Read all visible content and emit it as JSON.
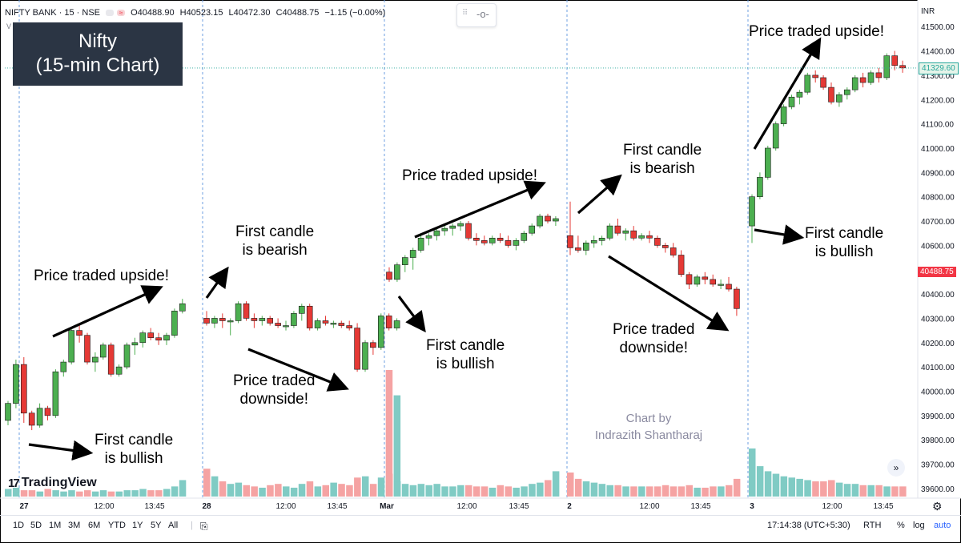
{
  "header": {
    "symbol": "NIFTY BANK · 15 · NSE",
    "ohlc": {
      "open": "O40488.90",
      "high": "H40523.15",
      "low": "L40472.30",
      "close": "C40488.75",
      "change": "−1.15 (−0.00%)"
    },
    "currency": "INR",
    "sub_label": "V"
  },
  "title_box": {
    "line1": "Nifty",
    "line2": "(15-min Chart)"
  },
  "annotations": [
    {
      "text": "Price traded upside!",
      "lines": [
        "Price traded upside!"
      ]
    },
    {
      "text": "First candle is bullish",
      "lines": [
        "First candle",
        "is bullish"
      ]
    },
    {
      "text": "First candle is bearish",
      "lines": [
        "First candle",
        "is bearish"
      ]
    },
    {
      "text": "Price traded downside!",
      "lines": [
        "Price traded",
        "downside!"
      ]
    },
    {
      "text": "Price traded upside!",
      "lines": [
        "Price traded upside!"
      ]
    },
    {
      "text": "First candle is bullish",
      "lines": [
        "First candle",
        "is bullish"
      ]
    },
    {
      "text": "First candle is bearish",
      "lines": [
        "First candle",
        "is bearish"
      ]
    },
    {
      "text": "Price traded downside!",
      "lines": [
        "Price traded",
        "downside!"
      ]
    },
    {
      "text": "Price traded upside!",
      "lines": [
        "Price traded upside!"
      ]
    },
    {
      "text": "First candle is bullish",
      "lines": [
        "First candle",
        "is bullish"
      ]
    }
  ],
  "watermark": {
    "line1": "Chart by",
    "line2": "Indrazith Shantharaj"
  },
  "logo": {
    "text": "TradingView",
    "mark": "17"
  },
  "toolbar": {
    "timeframes": [
      "1D",
      "5D",
      "1M",
      "3M",
      "6M",
      "YTD",
      "1Y",
      "5Y",
      "All"
    ],
    "clock": "17:14:38 (UTC+5:30)",
    "session": "RTH",
    "percent": "%",
    "log": "log",
    "auto": "auto"
  },
  "colors": {
    "bull": "#26a69a",
    "bear": "#ef5350",
    "bull_candle": "#4caf50",
    "bear_candle": "#e53935",
    "bull_vol": "#80cbc4",
    "bear_vol": "#f5a3a3",
    "session_line": "#6e9fe0",
    "title_box": "#2b3544"
  },
  "chart_data": {
    "type": "candlestick",
    "title": "",
    "ylabel": "INR",
    "ylim": [
      39570,
      41560
    ],
    "y_ticks": [
      41500,
      41400,
      41300,
      41200,
      41100,
      41000,
      40900,
      40800,
      40700,
      40600,
      40500,
      40400,
      40300,
      40200,
      40100,
      40000,
      39900,
      39800,
      39700,
      39600
    ],
    "y_tick_labels": [
      "41500.00",
      "41400.00",
      "41300.00",
      "41200.00",
      "41100.00",
      "41000.00",
      "40900.00",
      "40800.00",
      "40700.00",
      "40600.00",
      "40500.00",
      "40400.00",
      "40300.00",
      "40200.00",
      "40100.00",
      "40000.00",
      "39900.00",
      "39800.00",
      "39700.00",
      "39600.00"
    ],
    "x_tick_labels": [
      "27",
      "12:00",
      "13:45",
      "28",
      "12:00",
      "13:45",
      "Mar",
      "12:00",
      "13:45",
      "2",
      "12:00",
      "13:45",
      "3",
      "12:00",
      "13:45"
    ],
    "session_labels": [
      "27",
      "28",
      "Mar",
      "2",
      "3"
    ],
    "last_price": {
      "value": 41329.6,
      "label": "41329.60"
    },
    "marker_price": {
      "value": 40488.75,
      "label": "40488.75"
    },
    "grid": false,
    "sessions": [
      {
        "name": "27",
        "candles": [
          [
            39880,
            39960,
            39860,
            39950
          ],
          [
            39950,
            40130,
            39930,
            40110
          ],
          [
            40110,
            40140,
            39870,
            39910
          ],
          [
            39910,
            39920,
            39840,
            39860
          ],
          [
            39860,
            39950,
            39850,
            39930
          ],
          [
            39930,
            39940,
            39880,
            39900
          ],
          [
            39900,
            40090,
            39890,
            40080
          ],
          [
            40080,
            40130,
            40060,
            40120
          ],
          [
            40120,
            40260,
            40110,
            40250
          ],
          [
            40250,
            40270,
            40200,
            40230
          ],
          [
            40230,
            40240,
            40110,
            40120
          ],
          [
            40120,
            40160,
            40080,
            40140
          ],
          [
            40140,
            40200,
            40130,
            40190
          ],
          [
            40190,
            40200,
            40060,
            40070
          ],
          [
            40070,
            40110,
            40060,
            40100
          ],
          [
            40100,
            40200,
            40090,
            40190
          ],
          [
            40190,
            40220,
            40150,
            40200
          ],
          [
            40200,
            40250,
            40180,
            40240
          ],
          [
            40240,
            40260,
            40210,
            40220
          ],
          [
            40220,
            40240,
            40190,
            40210
          ],
          [
            40210,
            40240,
            40190,
            40230
          ],
          [
            40230,
            40340,
            40220,
            40330
          ],
          [
            40330,
            40380,
            40320,
            40360
          ]
        ]
      },
      {
        "name": "28",
        "candles": [
          [
            40300,
            40330,
            40270,
            40280
          ],
          [
            40280,
            40310,
            40260,
            40300
          ],
          [
            40300,
            40320,
            40260,
            40290
          ],
          [
            40290,
            40300,
            40230,
            40290
          ],
          [
            40290,
            40370,
            40280,
            40360
          ],
          [
            40360,
            40370,
            40290,
            40300
          ],
          [
            40300,
            40320,
            40260,
            40290
          ],
          [
            40290,
            40310,
            40270,
            40300
          ],
          [
            40300,
            40310,
            40270,
            40280
          ],
          [
            40280,
            40300,
            40260,
            40270
          ],
          [
            40270,
            40290,
            40250,
            40270
          ],
          [
            40270,
            40330,
            40260,
            40320
          ],
          [
            40320,
            40360,
            40290,
            40350
          ],
          [
            40350,
            40360,
            40250,
            40260
          ],
          [
            40260,
            40300,
            40250,
            40290
          ],
          [
            40290,
            40310,
            40270,
            40280
          ],
          [
            40280,
            40290,
            40260,
            40280
          ],
          [
            40280,
            40290,
            40260,
            40270
          ],
          [
            40270,
            40290,
            40250,
            40260
          ],
          [
            40260,
            40280,
            40080,
            40090
          ],
          [
            40090,
            40210,
            40080,
            40200
          ],
          [
            40200,
            40210,
            40150,
            40180
          ],
          [
            40180,
            40320,
            40170,
            40310
          ],
          [
            40310,
            40320,
            40250,
            40260
          ],
          [
            40260,
            40300,
            40250,
            40290
          ]
        ]
      },
      {
        "name": "Mar",
        "candles": [
          [
            40490,
            40510,
            40450,
            40460
          ],
          [
            40460,
            40530,
            40450,
            40520
          ],
          [
            40520,
            40560,
            40490,
            40550
          ],
          [
            40550,
            40590,
            40500,
            40580
          ],
          [
            40580,
            40640,
            40570,
            40630
          ],
          [
            40630,
            40650,
            40600,
            40640
          ],
          [
            40640,
            40670,
            40620,
            40660
          ],
          [
            40660,
            40680,
            40640,
            40670
          ],
          [
            40670,
            40690,
            40640,
            40680
          ],
          [
            40680,
            40700,
            40660,
            40690
          ],
          [
            40690,
            40700,
            40620,
            40630
          ],
          [
            40630,
            40650,
            40600,
            40620
          ],
          [
            40620,
            40640,
            40600,
            40610
          ],
          [
            40610,
            40640,
            40600,
            40630
          ],
          [
            40630,
            40650,
            40610,
            40620
          ],
          [
            40620,
            40640,
            40590,
            40600
          ],
          [
            40600,
            40630,
            40580,
            40620
          ],
          [
            40620,
            40660,
            40610,
            40650
          ],
          [
            40650,
            40690,
            40640,
            40680
          ],
          [
            40680,
            40730,
            40670,
            40720
          ],
          [
            40720,
            40730,
            40690,
            40700
          ],
          [
            40700,
            40720,
            40680,
            40710
          ]
        ]
      },
      {
        "name": "2",
        "candles": [
          [
            40640,
            40780,
            40560,
            40590
          ],
          [
            40590,
            40640,
            40570,
            40580
          ],
          [
            40580,
            40620,
            40560,
            40610
          ],
          [
            40610,
            40640,
            40590,
            40620
          ],
          [
            40620,
            40640,
            40600,
            40630
          ],
          [
            40630,
            40690,
            40620,
            40680
          ],
          [
            40680,
            40710,
            40640,
            40650
          ],
          [
            40650,
            40670,
            40620,
            40660
          ],
          [
            40660,
            40680,
            40620,
            40630
          ],
          [
            40630,
            40650,
            40620,
            40640
          ],
          [
            40640,
            40660,
            40610,
            40630
          ],
          [
            40630,
            40640,
            40590,
            40600
          ],
          [
            40600,
            40610,
            40570,
            40590
          ],
          [
            40590,
            40610,
            40550,
            40560
          ],
          [
            40560,
            40580,
            40470,
            40480
          ],
          [
            40480,
            40490,
            40420,
            40440
          ],
          [
            40440,
            40480,
            40430,
            40470
          ],
          [
            40470,
            40490,
            40440,
            40460
          ],
          [
            40460,
            40480,
            40430,
            40440
          ],
          [
            40440,
            40460,
            40420,
            40440
          ],
          [
            40440,
            40470,
            40410,
            40420
          ],
          [
            40420,
            40430,
            40310,
            40340
          ]
        ]
      },
      {
        "name": "3",
        "candles": [
          [
            40680,
            40810,
            40610,
            40800
          ],
          [
            40800,
            40900,
            40790,
            40880
          ],
          [
            40880,
            41010,
            40870,
            41000
          ],
          [
            41000,
            41110,
            40990,
            41100
          ],
          [
            41100,
            41180,
            41090,
            41170
          ],
          [
            41170,
            41220,
            41160,
            41210
          ],
          [
            41210,
            41240,
            41180,
            41230
          ],
          [
            41230,
            41310,
            41220,
            41300
          ],
          [
            41300,
            41320,
            41270,
            41290
          ],
          [
            41290,
            41300,
            41240,
            41250
          ],
          [
            41250,
            41270,
            41180,
            41190
          ],
          [
            41190,
            41230,
            41170,
            41220
          ],
          [
            41220,
            41250,
            41200,
            41240
          ],
          [
            41240,
            41300,
            41230,
            41290
          ],
          [
            41290,
            41310,
            41250,
            41270
          ],
          [
            41270,
            41320,
            41260,
            41310
          ],
          [
            41310,
            41330,
            41270,
            41290
          ],
          [
            41290,
            41390,
            41280,
            41380
          ],
          [
            41380,
            41400,
            41320,
            41340
          ],
          [
            41340,
            41360,
            41310,
            41330
          ]
        ]
      }
    ],
    "volume_ylim": [
      0,
      100
    ],
    "volumes": [
      {
        "session": "27",
        "values": [
          6,
          7,
          5,
          5,
          4,
          6,
          5,
          4,
          5,
          4,
          5,
          4,
          5,
          4,
          4,
          5,
          5,
          6,
          5,
          5,
          6,
          8,
          13
        ]
      },
      {
        "session": "28",
        "values": [
          22,
          16,
          12,
          10,
          11,
          9,
          8,
          7,
          9,
          10,
          8,
          7,
          10,
          12,
          8,
          9,
          11,
          10,
          9,
          15,
          16,
          10,
          15,
          100,
          80
        ]
      },
      {
        "session": "Mar",
        "values": [
          18,
          12,
          10,
          9,
          10,
          9,
          10,
          8,
          8,
          9,
          9,
          8,
          8,
          7,
          9,
          8,
          7,
          8,
          10,
          11,
          13,
          20
        ]
      },
      {
        "session": "2",
        "values": [
          19,
          14,
          12,
          11,
          10,
          9,
          9,
          8,
          8,
          8,
          8,
          8,
          9,
          8,
          8,
          9,
          7,
          7,
          8,
          8,
          9,
          14
        ]
      },
      {
        "session": "3",
        "values": [
          38,
          24,
          20,
          18,
          16,
          15,
          14,
          13,
          12,
          12,
          13,
          11,
          10,
          10,
          9,
          9,
          9,
          8,
          8,
          8
        ]
      }
    ]
  }
}
